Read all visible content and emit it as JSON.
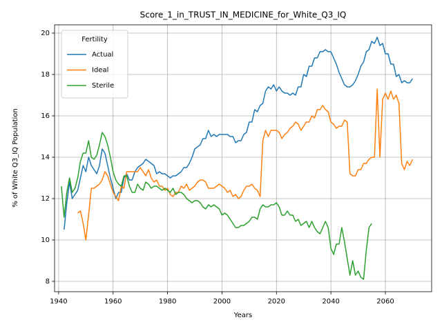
{
  "chart_data": {
    "type": "line",
    "title": "Score_1_in_TRUST_IN_MEDICINE_for_White_Q3_IQ",
    "x_label": "Years",
    "y_label": "% of White Q3_IQ Population",
    "legend_title": "Fertility",
    "legend_position": "upper left",
    "grid": true,
    "xlim": [
      1938.5,
      2077
    ],
    "ylim": [
      7.5,
      20.4
    ],
    "xticks": [
      1940,
      1960,
      1980,
      2000,
      2020,
      2040,
      2060
    ],
    "yticks": [
      8,
      10,
      12,
      14,
      16,
      18,
      20
    ],
    "x": [
      1941,
      1942,
      1943,
      1944,
      1945,
      1946,
      1947,
      1948,
      1949,
      1950,
      1951,
      1952,
      1953,
      1954,
      1955,
      1956,
      1957,
      1958,
      1959,
      1960,
      1961,
      1962,
      1963,
      1964,
      1965,
      1966,
      1967,
      1968,
      1969,
      1970,
      1971,
      1972,
      1973,
      1974,
      1975,
      1976,
      1977,
      1978,
      1979,
      1980,
      1981,
      1982,
      1983,
      1984,
      1985,
      1986,
      1987,
      1988,
      1989,
      1990,
      1991,
      1992,
      1993,
      1994,
      1995,
      1996,
      1997,
      1998,
      1999,
      2000,
      2001,
      2002,
      2003,
      2004,
      2005,
      2006,
      2007,
      2008,
      2009,
      2010,
      2011,
      2012,
      2013,
      2014,
      2015,
      2016,
      2017,
      2018,
      2019,
      2020,
      2021,
      2022,
      2023,
      2024,
      2025,
      2026,
      2027,
      2028,
      2029,
      2030,
      2031,
      2032,
      2033,
      2034,
      2035,
      2036,
      2037,
      2038,
      2039,
      2040,
      2041,
      2042,
      2043,
      2044,
      2045,
      2046,
      2047,
      2048,
      2049,
      2050,
      2051,
      2052,
      2053,
      2054,
      2055,
      2056,
      2057,
      2058,
      2059,
      2060,
      2061,
      2062,
      2063,
      2064,
      2065,
      2066,
      2067,
      2068,
      2069,
      2070
    ],
    "series": [
      {
        "name": "Actual",
        "color": "#1f77b4",
        "values": [
          null,
          10.5,
          11.8,
          12.8,
          12.0,
          12.2,
          12.4,
          13.0,
          13.6,
          13.3,
          14.0,
          13.6,
          13.4,
          13.2,
          13.6,
          14.4,
          14.2,
          13.6,
          13.0,
          12.5,
          12.0,
          12.3,
          12.3,
          13.0,
          13.2,
          12.9,
          12.9,
          13.3,
          13.5,
          13.6,
          13.7,
          13.9,
          13.8,
          13.7,
          13.6,
          13.2,
          13.3,
          13.2,
          13.2,
          13.1,
          13.0,
          13.1,
          13.1,
          13.2,
          13.3,
          13.5,
          13.5,
          13.7,
          14.0,
          14.4,
          14.5,
          14.6,
          14.9,
          14.9,
          15.3,
          15.0,
          15.1,
          15.0,
          15.1,
          15.1,
          15.1,
          15.1,
          15.0,
          15.0,
          14.7,
          14.8,
          14.8,
          15.1,
          15.2,
          15.7,
          15.7,
          16.3,
          16.2,
          16.5,
          16.6,
          17.2,
          17.4,
          17.3,
          17.5,
          17.2,
          17.4,
          17.2,
          17.1,
          17.1,
          17.0,
          17.1,
          17.0,
          17.4,
          17.4,
          18.0,
          17.9,
          18.4,
          18.4,
          18.8,
          18.8,
          19.1,
          19.1,
          19.2,
          19.1,
          19.1,
          18.8,
          18.5,
          18.1,
          17.8,
          17.5,
          17.4,
          17.4,
          17.5,
          17.7,
          18.0,
          18.4,
          18.6,
          19.1,
          19.2,
          19.6,
          19.5,
          19.8,
          19.4,
          19.5,
          19.0,
          19.0,
          18.5,
          18.5,
          17.9,
          18.0,
          17.6,
          17.7,
          17.6,
          17.6,
          17.8
        ]
      },
      {
        "name": "Ideal",
        "color": "#ff7f0e",
        "values": [
          null,
          null,
          null,
          null,
          null,
          null,
          11.3,
          11.4,
          10.8,
          10.0,
          11.2,
          12.5,
          12.5,
          12.6,
          12.7,
          12.9,
          13.3,
          13.1,
          12.7,
          12.3,
          12.1,
          11.9,
          12.6,
          12.5,
          13.3,
          13.3,
          13.3,
          13.3,
          13.3,
          13.5,
          13.3,
          13.1,
          13.4,
          13.0,
          12.8,
          12.9,
          12.6,
          12.6,
          12.4,
          12.5,
          12.2,
          12.1,
          12.3,
          12.3,
          12.6,
          12.5,
          12.7,
          12.4,
          12.5,
          12.6,
          12.8,
          12.9,
          12.9,
          12.8,
          12.5,
          12.5,
          12.5,
          12.6,
          12.7,
          12.6,
          12.5,
          12.3,
          12.4,
          12.1,
          12.2,
          12.0,
          12.1,
          12.4,
          12.6,
          12.6,
          12.7,
          12.5,
          12.4,
          12.1,
          14.8,
          15.3,
          15.0,
          15.3,
          15.3,
          15.3,
          15.2,
          14.9,
          15.1,
          15.2,
          15.4,
          15.5,
          15.7,
          15.6,
          15.3,
          15.5,
          15.7,
          15.7,
          16.0,
          15.9,
          16.3,
          16.3,
          16.5,
          16.3,
          16.2,
          15.7,
          15.6,
          15.4,
          15.5,
          15.5,
          15.8,
          15.7,
          13.2,
          13.1,
          13.1,
          13.4,
          13.4,
          13.7,
          13.7,
          13.9,
          14.0,
          14.0,
          17.3,
          14.0,
          16.8,
          17.1,
          16.8,
          17.2,
          16.8,
          17.0,
          16.6,
          13.7,
          13.4,
          13.8,
          13.6,
          13.9
        ]
      },
      {
        "name": "Sterile",
        "color": "#2ca02c",
        "values": [
          12.6,
          11.1,
          12.3,
          13.0,
          12.3,
          12.5,
          13.0,
          13.8,
          14.2,
          14.2,
          14.8,
          14.0,
          13.9,
          14.1,
          14.6,
          15.2,
          15.0,
          14.6,
          14.0,
          13.3,
          12.9,
          12.7,
          12.6,
          13.1,
          13.1,
          12.6,
          12.3,
          12.3,
          12.7,
          12.5,
          12.4,
          12.8,
          12.7,
          12.5,
          12.6,
          12.6,
          12.5,
          12.4,
          12.5,
          12.4,
          12.3,
          12.5,
          12.2,
          12.3,
          12.3,
          12.2,
          12.0,
          11.9,
          11.8,
          11.9,
          11.9,
          11.8,
          11.6,
          11.5,
          11.7,
          11.6,
          11.7,
          11.6,
          11.5,
          11.2,
          11.3,
          11.2,
          11.0,
          10.8,
          10.6,
          10.6,
          10.7,
          10.7,
          10.8,
          10.9,
          11.1,
          11.1,
          11.0,
          11.5,
          11.7,
          11.6,
          11.6,
          11.7,
          11.7,
          11.8,
          11.6,
          11.2,
          11.2,
          11.4,
          11.2,
          11.2,
          10.9,
          11.0,
          10.7,
          10.8,
          10.9,
          10.6,
          10.9,
          10.6,
          10.4,
          10.3,
          10.6,
          10.9,
          10.6,
          9.6,
          9.3,
          9.8,
          9.8,
          10.6,
          9.9,
          9.1,
          8.3,
          9.0,
          8.3,
          8.5,
          8.2,
          8.1,
          9.5,
          10.6,
          10.8,
          null,
          null,
          null,
          null,
          null,
          null,
          null,
          null,
          null,
          null,
          null,
          null,
          null,
          null,
          null
        ]
      }
    ]
  }
}
